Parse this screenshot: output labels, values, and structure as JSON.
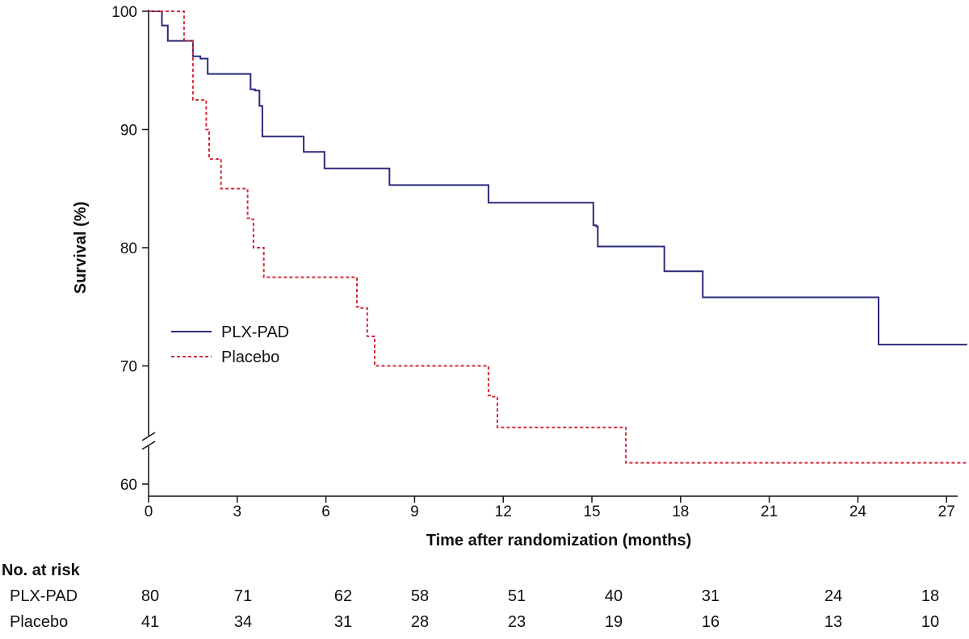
{
  "chart_data": {
    "type": "line",
    "chart_style": "kaplan-meier step",
    "xlabel": "Time after randomization (months)",
    "ylabel": "Survival (%)",
    "xlim": [
      0,
      28
    ],
    "ylim": [
      58,
      100
    ],
    "x_ticks": [
      0,
      3,
      6,
      9,
      12,
      15,
      18,
      21,
      24,
      27
    ],
    "y_ticks": [
      60,
      70,
      80,
      90,
      100
    ],
    "y_axis_break_between": [
      60,
      70
    ],
    "grid": false,
    "legend_position": "center-left",
    "series": [
      {
        "name": "PLX-PAD",
        "color": "#2b2a7a",
        "style": "solid",
        "x": [
          0,
          0.45,
          0.65,
          1.5,
          1.75,
          2.0,
          3.45,
          3.6,
          3.75,
          3.85,
          5.25,
          5.95,
          8.15,
          11.5,
          15.05,
          15.15,
          15.2,
          17.45,
          18.75,
          24.7,
          27.7
        ],
        "y": [
          100,
          98.8,
          97.5,
          96.2,
          96.0,
          94.7,
          93.4,
          93.3,
          92.0,
          89.4,
          88.1,
          86.7,
          85.3,
          83.8,
          81.9,
          81.8,
          80.1,
          78.0,
          75.8,
          71.8,
          71.8
        ]
      },
      {
        "name": "Placebo",
        "color": "#d42a3a",
        "style": "dashed",
        "x": [
          0,
          1.2,
          1.5,
          1.95,
          2.05,
          2.45,
          3.35,
          3.45,
          3.55,
          3.9,
          7.05,
          7.15,
          7.4,
          7.65,
          11.5,
          11.6,
          11.8,
          16.15,
          27.7
        ],
        "y": [
          100,
          97.5,
          92.5,
          90.0,
          87.5,
          85.0,
          82.5,
          82.4,
          80.0,
          77.5,
          75.0,
          74.9,
          72.5,
          70.0,
          67.5,
          67.4,
          64.8,
          61.8,
          61.8
        ]
      }
    ]
  },
  "risk_table": {
    "title": "No. at risk",
    "rows": [
      {
        "label": "PLX-PAD",
        "values": [
          "80",
          "71",
          "62",
          "58",
          "51",
          "40",
          "31",
          "24",
          "18"
        ]
      },
      {
        "label": "Placebo",
        "values": [
          "41",
          "34",
          "31",
          "28",
          "23",
          "19",
          "16",
          "13",
          "10"
        ]
      }
    ]
  }
}
